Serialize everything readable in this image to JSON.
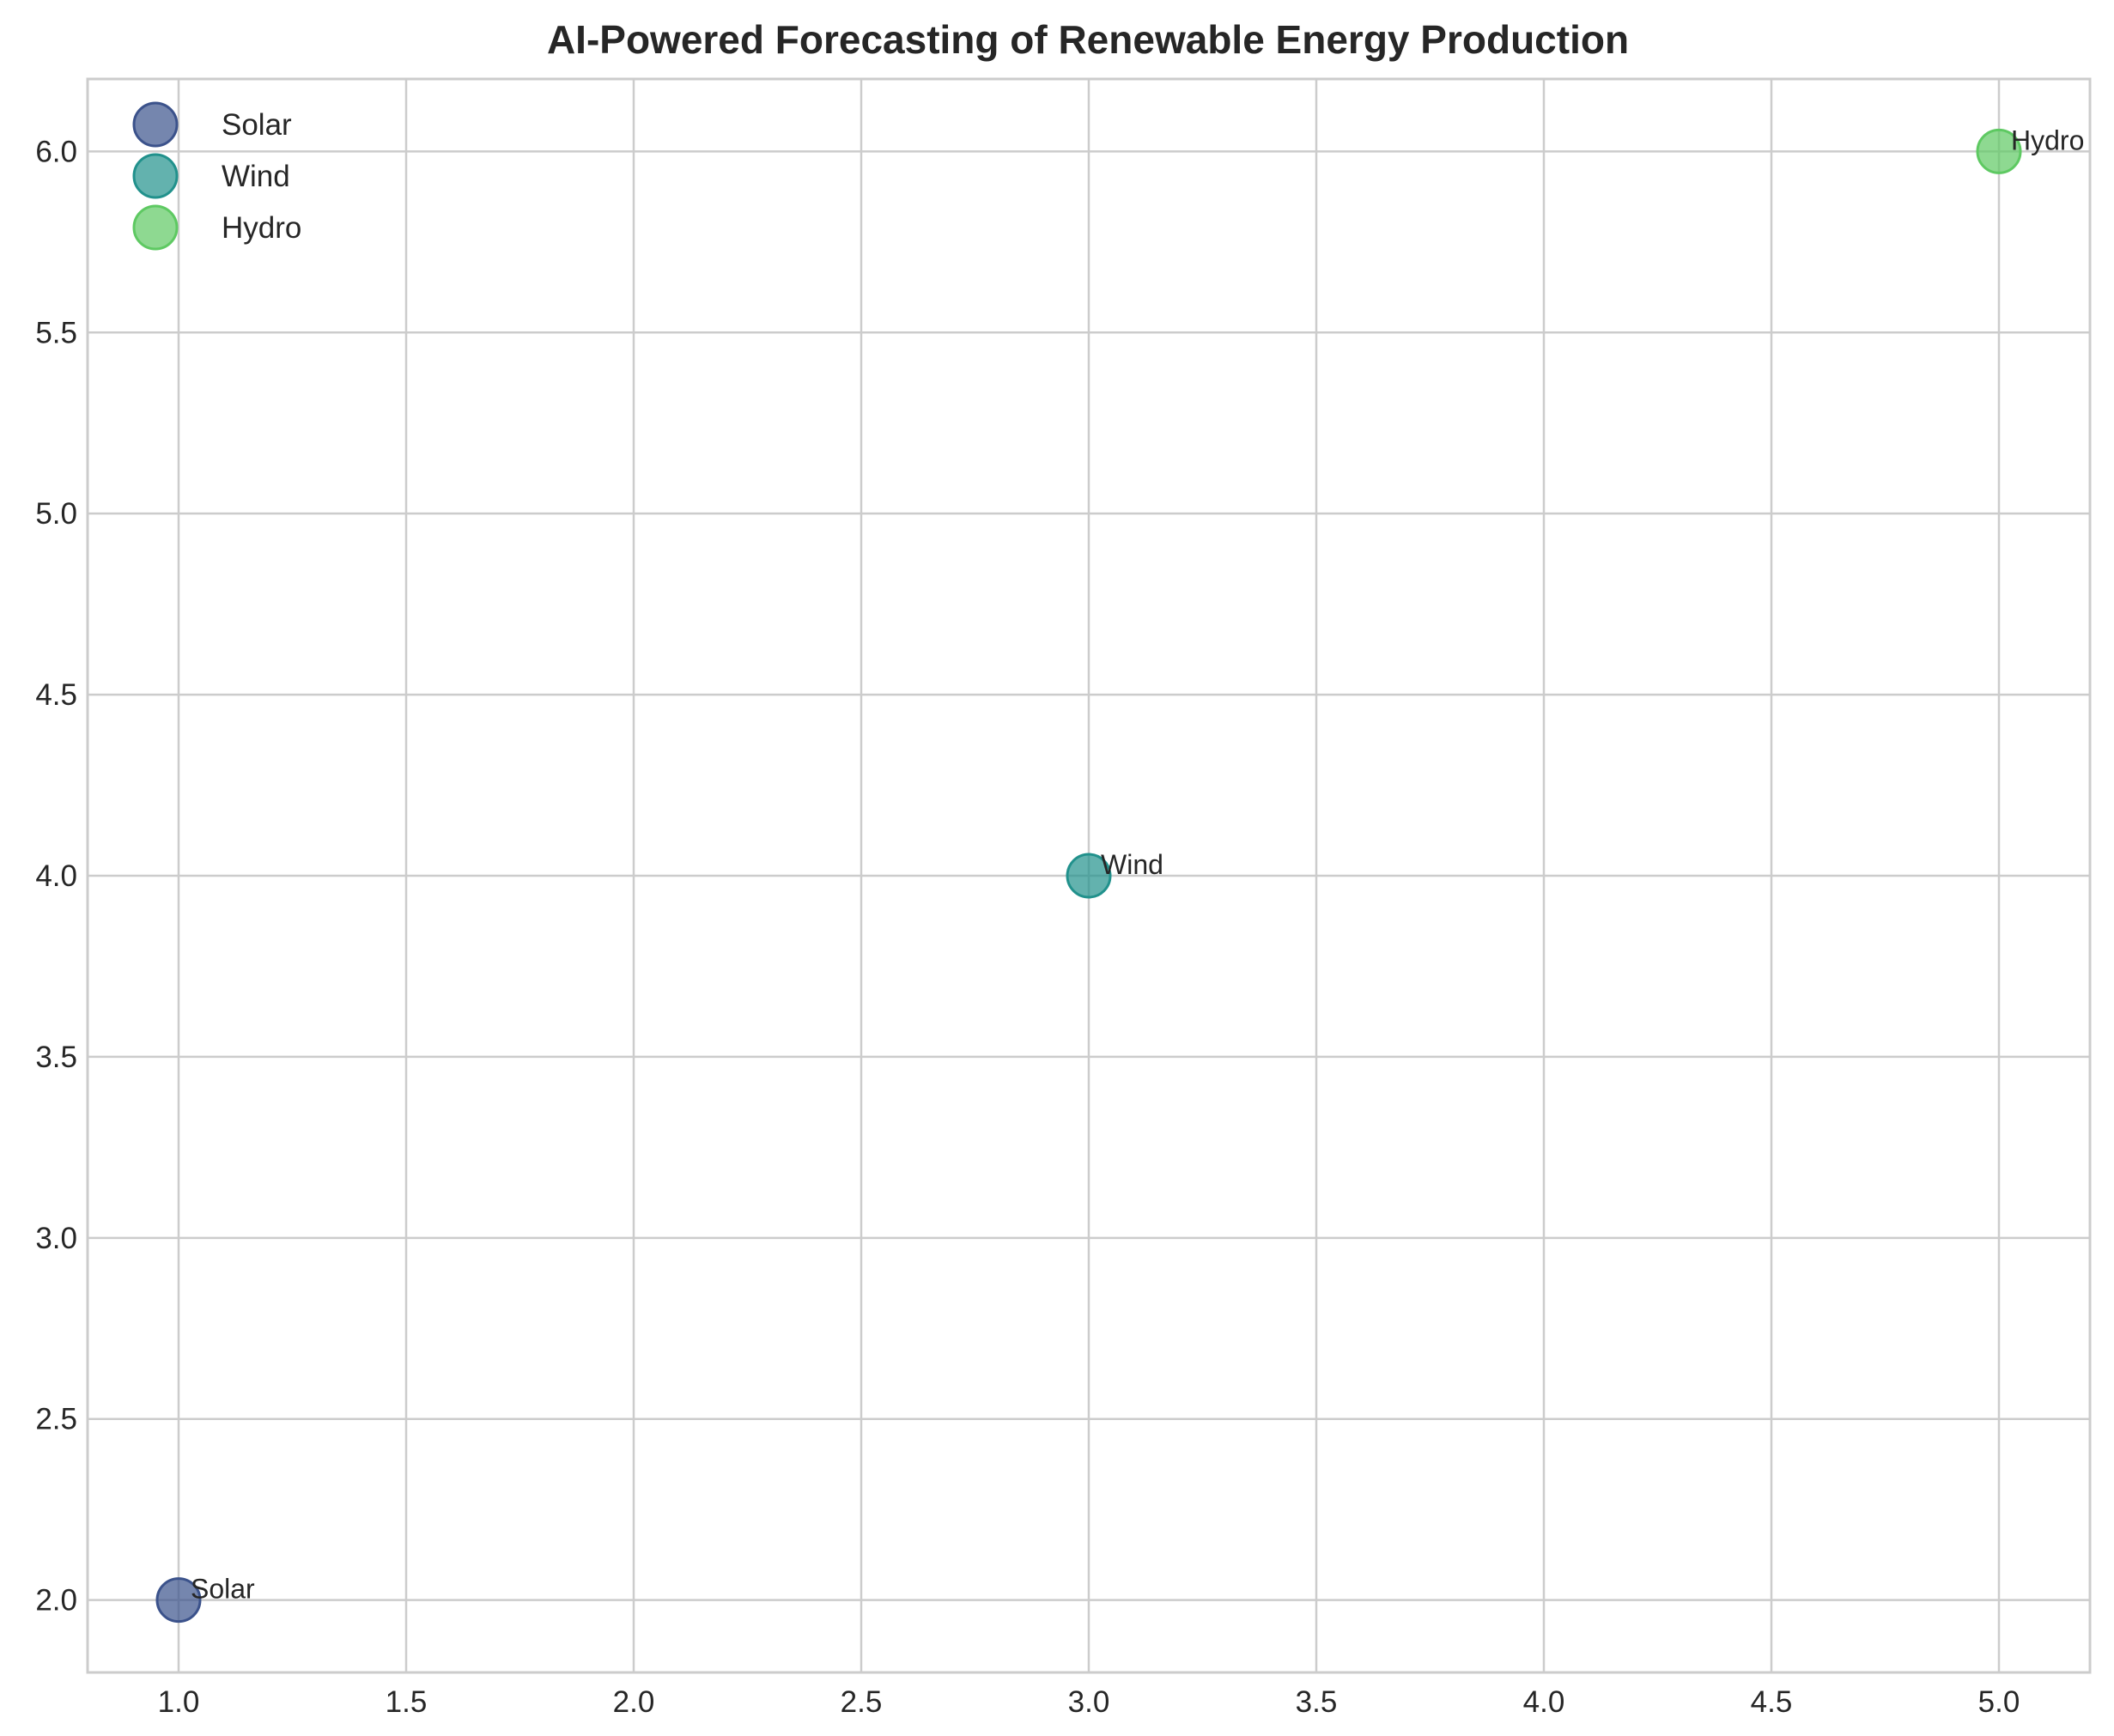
{
  "chart_data": {
    "type": "scatter",
    "title": "AI-Powered Forecasting of Renewable Energy Production",
    "xlabel": "",
    "ylabel": "",
    "xlim": [
      0.8,
      5.2
    ],
    "ylim": [
      1.8,
      6.2
    ],
    "xticks": [
      1.0,
      1.5,
      2.0,
      2.5,
      3.0,
      3.5,
      4.0,
      4.5,
      5.0
    ],
    "yticks": [
      2.0,
      2.5,
      3.0,
      3.5,
      4.0,
      4.5,
      5.0,
      5.5,
      6.0
    ],
    "xtick_labels": [
      "1.0",
      "1.5",
      "2.0",
      "2.5",
      "3.0",
      "3.5",
      "4.0",
      "4.5",
      "5.0"
    ],
    "ytick_labels": [
      "2.0",
      "2.5",
      "3.0",
      "3.5",
      "4.0",
      "4.5",
      "5.0",
      "5.5",
      "6.0"
    ],
    "grid": true,
    "legend_position": "top-left",
    "series": [
      {
        "name": "Solar",
        "x": [
          1.0
        ],
        "y": [
          2.0
        ],
        "color": "#3b528b",
        "annotation": "Solar"
      },
      {
        "name": "Wind",
        "x": [
          3.0
        ],
        "y": [
          4.0
        ],
        "color": "#21918c",
        "annotation": "Wind"
      },
      {
        "name": "Hydro",
        "x": [
          5.0
        ],
        "y": [
          6.0
        ],
        "color": "#5ec962",
        "annotation": "Hydro"
      }
    ]
  }
}
